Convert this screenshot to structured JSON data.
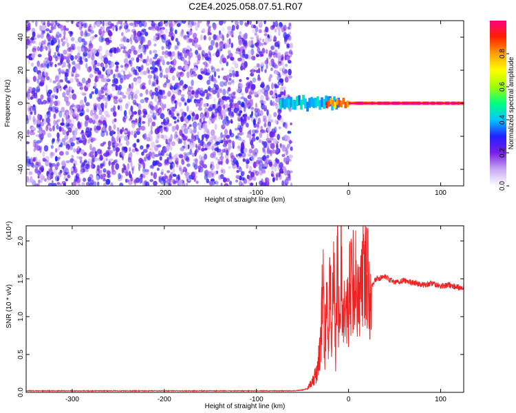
{
  "title": "C2E4.2025.058.07.51.R07",
  "chart_data": [
    {
      "type": "heatmap",
      "xlabel": "Height of straight line (km)",
      "ylabel": "Frequency (Hz)",
      "xlim": [
        -350,
        125
      ],
      "ylim": [
        -50,
        50
      ],
      "xticks": [
        -300,
        -200,
        -100,
        0,
        100
      ],
      "yticks": [
        -40,
        -20,
        0,
        20,
        40
      ],
      "colorbar": {
        "label": "Normalized spectral amplitude",
        "range": [
          0,
          1
        ],
        "ticks": [
          "0.0",
          "0.2",
          "0.4",
          "0.6",
          "0.8"
        ],
        "colormap": [
          "#ffffff",
          "#c9a8f4",
          "#7a1ee6",
          "#2020ff",
          "#00c8ff",
          "#00ff80",
          "#a0ff00",
          "#ffff00",
          "#ffa000",
          "#ff2000",
          "#ff0080"
        ]
      },
      "regions": [
        {
          "x_range": [
            -350,
            -62
          ],
          "f_range": [
            -50,
            50
          ],
          "amplitude": 0.1
        },
        {
          "x_range": [
            -75,
            -10
          ],
          "f_center": 0,
          "f_width": 6,
          "amplitude": 0.4
        },
        {
          "x_range": [
            -25,
            0
          ],
          "f_center": 0,
          "f_width": 4,
          "amplitude": 0.85
        },
        {
          "x_range": [
            0,
            125
          ],
          "f_center": 0,
          "f_width": 2,
          "amplitude": 0.95
        }
      ]
    },
    {
      "type": "line",
      "xlabel": "Height of straight line (km)",
      "ylabel": "SNR (10 * v/v)",
      "y_multiplier": "(x10⁴)",
      "xlim": [
        -350,
        125
      ],
      "ylim": [
        0,
        2.2
      ],
      "xticks": [
        -300,
        -200,
        -100,
        0,
        100
      ],
      "yticks": [
        "0.0",
        "0.5",
        "1.0",
        "1.5",
        "2.0"
      ],
      "series": [
        {
          "color": "#ee2222",
          "x": [
            -350,
            -300,
            -250,
            -200,
            -150,
            -100,
            -60,
            -50,
            -45,
            -40,
            -35,
            -30,
            -28,
            -26,
            -24,
            -22,
            -20,
            -18,
            -16,
            -14,
            -12,
            -10,
            -8,
            -6,
            -4,
            -2,
            0,
            5,
            10,
            15,
            20,
            25,
            30,
            40,
            50,
            60,
            70,
            80,
            90,
            100,
            110,
            120,
            125
          ],
          "y": [
            0.02,
            0.02,
            0.02,
            0.02,
            0.02,
            0.02,
            0.02,
            0.03,
            0.05,
            0.12,
            0.25,
            0.6,
            1.8,
            0.5,
            1.5,
            0.4,
            1.6,
            0.6,
            2.15,
            0.5,
            1.7,
            0.8,
            1.8,
            0.9,
            1.6,
            1.0,
            1.2,
            1.6,
            1.3,
            1.5,
            1.65,
            1.4,
            1.5,
            1.52,
            1.45,
            1.48,
            1.45,
            1.42,
            1.44,
            1.4,
            1.42,
            1.38,
            1.4
          ]
        }
      ]
    }
  ]
}
